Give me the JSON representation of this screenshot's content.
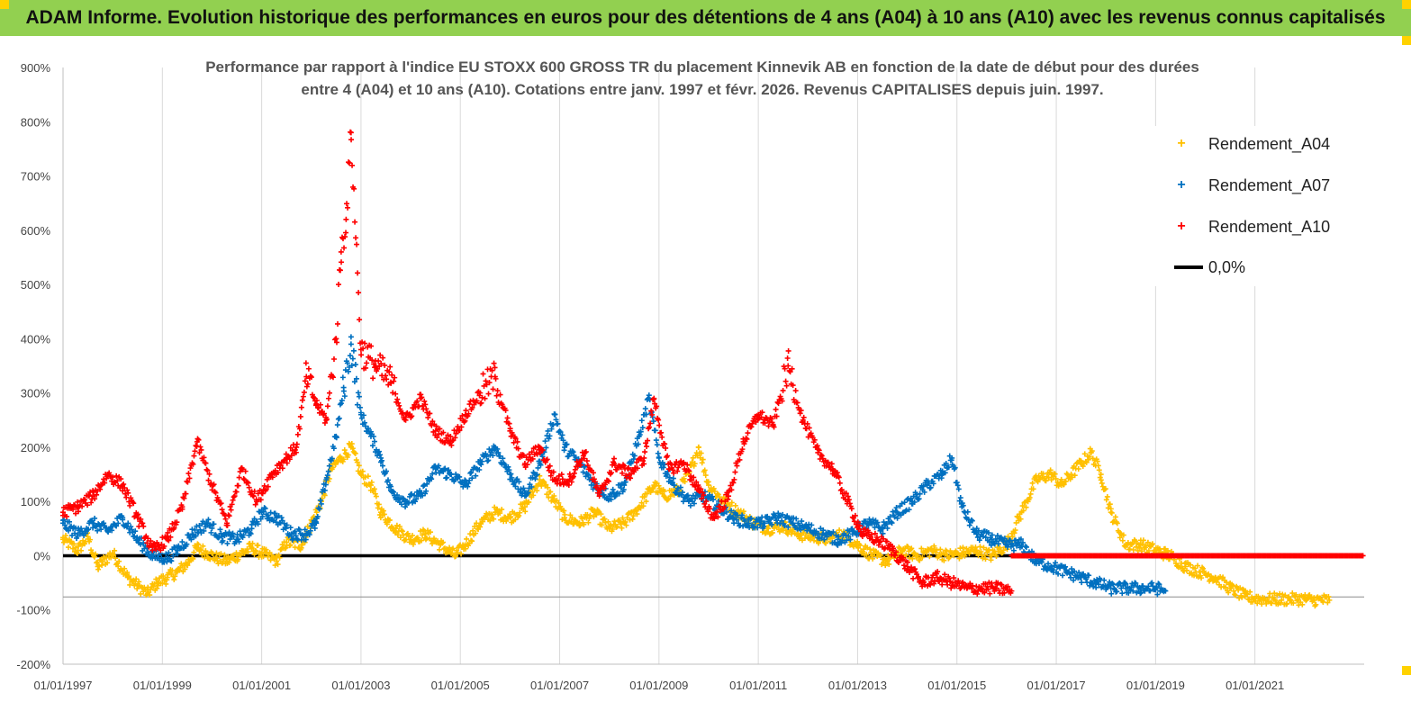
{
  "header": {
    "title": "ADAM Informe. Evolution historique des performances en euros pour des détentions de 4 ans (A04) à 10 ans (A10) avec les revenus connus capitalisés"
  },
  "colors": {
    "header_bg": "#92d050",
    "a04": "#ffc000",
    "a07": "#0070c0",
    "a10": "#ff0000",
    "zero_line": "#000000",
    "grid": "#d9d9d9"
  },
  "chart_data": {
    "type": "scatter",
    "title_line1": "Performance par rapport à l'indice EU STOXX 600 GROSS TR  du placement Kinnevik AB en fonction de la date de début pour des durées",
    "title_line2": "entre 4 (A04) et 10 ans (A10).  Cotations entre janv. 1997 et févr. 2026. Revenus  CAPITALISES depuis juin. 1997.",
    "y_ticks": [
      "900%",
      "800%",
      "700%",
      "600%",
      "500%",
      "400%",
      "300%",
      "200%",
      "100%",
      "0%",
      "-100%",
      "-200%"
    ],
    "y_range": [
      -200,
      900
    ],
    "x_ticks": [
      "01/01/1997",
      "01/01/1999",
      "01/01/2001",
      "01/01/2003",
      "01/01/2005",
      "01/01/2007",
      "01/01/2009",
      "01/01/2011",
      "01/01/2013",
      "01/01/2015",
      "01/01/2017",
      "01/01/2019",
      "01/01/2021"
    ],
    "x_range_years": [
      1997.0,
      2023.2
    ],
    "grid": "vertical lines",
    "legend_position": "top-right",
    "legend": [
      "Rendement_A04",
      "Rendement_A07",
      "Rendement_A10",
      "0,0%"
    ],
    "series": [
      {
        "name": "Rendement_A04",
        "color": "#ffc000",
        "x": [
          1997.0,
          1997.3,
          1997.5,
          1997.7,
          1998.0,
          1998.3,
          1998.5,
          1998.7,
          1998.9,
          1999.1,
          1999.3,
          1999.5,
          1999.7,
          1999.9,
          2000.1,
          2000.3,
          2000.5,
          2000.8,
          2001.0,
          2001.3,
          2001.5,
          2001.8,
          2002.0,
          2002.2,
          2002.4,
          2002.6,
          2002.8,
          2003.0,
          2003.2,
          2003.4,
          2003.7,
          2004.0,
          2004.3,
          2004.6,
          2004.9,
          2005.1,
          2005.4,
          2005.7,
          2006.0,
          2006.3,
          2006.6,
          2006.9,
          2007.1,
          2007.4,
          2007.7,
          2008.0,
          2008.3,
          2008.6,
          2008.9,
          2009.1,
          2009.4,
          2009.6,
          2009.8,
          2010.0,
          2010.3,
          2010.6,
          2010.9,
          2011.2,
          2011.5,
          2011.8,
          2012.1,
          2012.4,
          2012.7,
          2013.0,
          2013.3,
          2013.6,
          2013.9,
          2014.2,
          2014.5,
          2014.8,
          2015.1,
          2015.4,
          2015.7,
          2016.0,
          2016.3,
          2016.6,
          2016.9,
          2017.1,
          2017.3,
          2017.5,
          2017.7,
          2017.9,
          2018.1,
          2018.4,
          2018.7,
          2019.0,
          2019.3,
          2019.6,
          2019.9,
          2020.2,
          2020.5,
          2020.8,
          2021.1,
          2021.4,
          2021.7,
          2022.0,
          2022.2,
          2022.5
        ],
        "values": [
          30,
          10,
          35,
          -20,
          5,
          -40,
          -55,
          -70,
          -50,
          -40,
          -30,
          -15,
          15,
          5,
          -5,
          -10,
          0,
          15,
          5,
          -10,
          25,
          20,
          60,
          100,
          160,
          180,
          200,
          150,
          130,
          80,
          50,
          30,
          40,
          20,
          0,
          20,
          60,
          80,
          70,
          90,
          140,
          100,
          70,
          60,
          80,
          50,
          60,
          90,
          130,
          110,
          120,
          150,
          200,
          130,
          100,
          80,
          60,
          50,
          55,
          40,
          35,
          30,
          40,
          20,
          0,
          -10,
          10,
          0,
          10,
          0,
          5,
          10,
          0,
          20,
          80,
          140,
          150,
          130,
          150,
          170,
          190,
          150,
          80,
          20,
          20,
          10,
          0,
          -20,
          -30,
          -40,
          -60,
          -75,
          -80,
          -80,
          -80,
          -80,
          -82,
          -82
        ]
      },
      {
        "name": "Rendement_A07",
        "color": "#0070c0",
        "x": [
          1997.0,
          1997.3,
          1997.6,
          1997.9,
          1998.2,
          1998.5,
          1998.8,
          1999.1,
          1999.3,
          1999.6,
          1999.9,
          2000.2,
          2000.5,
          2000.8,
          2001.0,
          2001.3,
          2001.6,
          2001.9,
          2002.1,
          2002.3,
          2002.5,
          2002.65,
          2002.8,
          2003.0,
          2003.2,
          2003.4,
          2003.6,
          2003.9,
          2004.2,
          2004.5,
          2004.8,
          2005.1,
          2005.4,
          2005.7,
          2006.0,
          2006.3,
          2006.6,
          2006.9,
          2007.1,
          2007.4,
          2007.7,
          2008.0,
          2008.3,
          2008.6,
          2008.8,
          2009.0,
          2009.3,
          2009.6,
          2009.9,
          2010.2,
          2010.5,
          2010.8,
          2011.1,
          2011.4,
          2011.7,
          2012.0,
          2012.3,
          2012.6,
          2012.9,
          2013.2,
          2013.5,
          2013.8,
          2014.1,
          2014.4,
          2014.7,
          2014.9,
          2015.1,
          2015.4,
          2015.7,
          2016.0,
          2016.3,
          2016.6,
          2016.9,
          2017.2,
          2017.5,
          2017.8,
          2018.1,
          2018.4,
          2018.7,
          2019.0,
          2019.2
        ],
        "values": [
          60,
          40,
          60,
          45,
          70,
          30,
          0,
          -5,
          10,
          40,
          60,
          35,
          30,
          50,
          80,
          70,
          40,
          40,
          60,
          140,
          220,
          310,
          390,
          260,
          220,
          180,
          120,
          100,
          110,
          160,
          150,
          130,
          170,
          200,
          150,
          110,
          170,
          260,
          200,
          170,
          130,
          110,
          130,
          220,
          290,
          180,
          130,
          100,
          110,
          90,
          70,
          60,
          60,
          70,
          60,
          50,
          40,
          30,
          40,
          60,
          50,
          80,
          100,
          130,
          150,
          180,
          90,
          40,
          30,
          20,
          20,
          -10,
          -20,
          -30,
          -40,
          -50,
          -60,
          -60,
          -60,
          -60,
          -65
        ]
      },
      {
        "name": "Rendement_A10",
        "color": "#ff0000",
        "x": [
          1997.0,
          1997.3,
          1997.6,
          1997.9,
          1998.2,
          1998.5,
          1998.8,
          1999.1,
          1999.4,
          1999.7,
          2000.0,
          2000.3,
          2000.6,
          2000.9,
          2001.2,
          2001.5,
          2001.7,
          2001.9,
          2002.1,
          2002.3,
          2002.5,
          2002.6,
          2002.7,
          2002.8,
          2003.0,
          2003.3,
          2003.6,
          2003.9,
          2004.2,
          2004.5,
          2004.8,
          2005.1,
          2005.4,
          2005.7,
          2006.0,
          2006.3,
          2006.6,
          2006.9,
          2007.2,
          2007.5,
          2007.8,
          2008.1,
          2008.4,
          2008.7,
          2008.9,
          2009.2,
          2009.5,
          2009.8,
          2010.1,
          2010.4,
          2010.7,
          2011.0,
          2011.3,
          2011.6,
          2011.9,
          2012.2,
          2012.5,
          2012.8,
          2013.1,
          2013.4,
          2013.7,
          2014.0,
          2014.3,
          2014.6,
          2014.9,
          2015.2,
          2015.5,
          2015.8,
          2016.1
        ],
        "values": [
          80,
          90,
          110,
          150,
          130,
          70,
          10,
          30,
          90,
          210,
          130,
          60,
          160,
          100,
          150,
          180,
          200,
          330,
          280,
          250,
          400,
          560,
          620,
          780,
          380,
          350,
          320,
          250,
          290,
          230,
          210,
          260,
          300,
          330,
          230,
          170,
          200,
          140,
          140,
          190,
          110,
          170,
          150,
          180,
          290,
          160,
          170,
          120,
          70,
          110,
          210,
          260,
          240,
          350,
          250,
          190,
          160,
          100,
          40,
          30,
          10,
          -20,
          -50,
          -40,
          -50,
          -60,
          -60,
          -60,
          -65
        ]
      },
      {
        "name": "Rendement_A10 (zero segment)",
        "color": "#ff0000",
        "x": [
          2016.1,
          2023.2
        ],
        "values": [
          0,
          0
        ]
      },
      {
        "name": "0,0%",
        "color": "#000000",
        "x": [
          1997.0,
          2016.1
        ],
        "values": [
          0,
          0
        ]
      }
    ]
  }
}
